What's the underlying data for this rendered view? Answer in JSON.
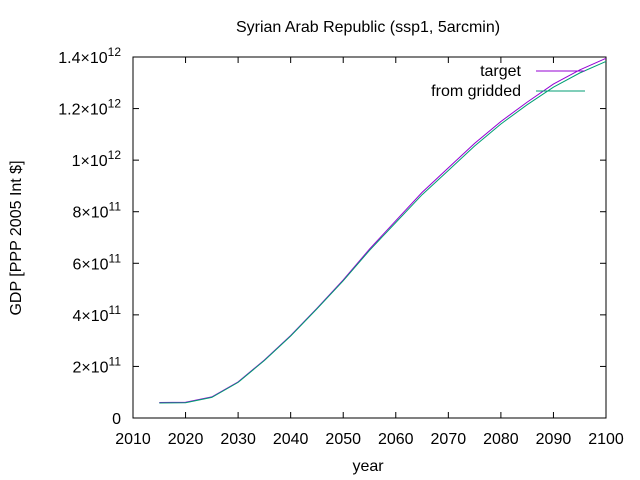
{
  "chart_data": {
    "type": "line",
    "title": "Syrian Arab Republic (ssp1, 5arcmin)",
    "xlabel": "year",
    "ylabel": "GDP [PPP 2005 Int $]",
    "xlim": [
      2010,
      2100
    ],
    "ylim": [
      0,
      1400000000000
    ],
    "x_ticks": [
      2010,
      2020,
      2030,
      2040,
      2050,
      2060,
      2070,
      2080,
      2090,
      2100
    ],
    "y_ticks": [
      {
        "value": 0,
        "mantissa": "0",
        "exponent": ""
      },
      {
        "value": 200000000000,
        "mantissa": "2×10",
        "exponent": "11"
      },
      {
        "value": 400000000000,
        "mantissa": "4×10",
        "exponent": "11"
      },
      {
        "value": 600000000000,
        "mantissa": "6×10",
        "exponent": "11"
      },
      {
        "value": 800000000000,
        "mantissa": "8×10",
        "exponent": "11"
      },
      {
        "value": 1000000000000,
        "mantissa": "1×10",
        "exponent": "12"
      },
      {
        "value": 1200000000000,
        "mantissa": "1.2×10",
        "exponent": "12"
      },
      {
        "value": 1400000000000,
        "mantissa": "1.4×10",
        "exponent": "12"
      }
    ],
    "grid": false,
    "legend_position": "top-right",
    "series": [
      {
        "name": "target",
        "color": "#9400d3",
        "x": [
          2015,
          2020,
          2025,
          2030,
          2035,
          2040,
          2045,
          2050,
          2055,
          2060,
          2065,
          2070,
          2075,
          2080,
          2085,
          2090,
          2095,
          2100
        ],
        "values": [
          60000000000,
          61000000000,
          82000000000,
          140000000000,
          225000000000,
          320000000000,
          425000000000,
          535000000000,
          655000000000,
          765000000000,
          875000000000,
          970000000000,
          1065000000000,
          1150000000000,
          1225000000000,
          1295000000000,
          1350000000000,
          1395000000000
        ]
      },
      {
        "name": "from gridded",
        "color": "#009e73",
        "x": [
          2015,
          2020,
          2025,
          2030,
          2035,
          2040,
          2045,
          2050,
          2055,
          2060,
          2065,
          2070,
          2075,
          2080,
          2085,
          2090,
          2095,
          2100
        ],
        "values": [
          58000000000,
          59000000000,
          80000000000,
          138000000000,
          223000000000,
          318000000000,
          423000000000,
          532000000000,
          650000000000,
          758000000000,
          866000000000,
          960000000000,
          1055000000000,
          1140000000000,
          1215000000000,
          1283000000000,
          1338000000000,
          1383000000000
        ]
      }
    ]
  }
}
